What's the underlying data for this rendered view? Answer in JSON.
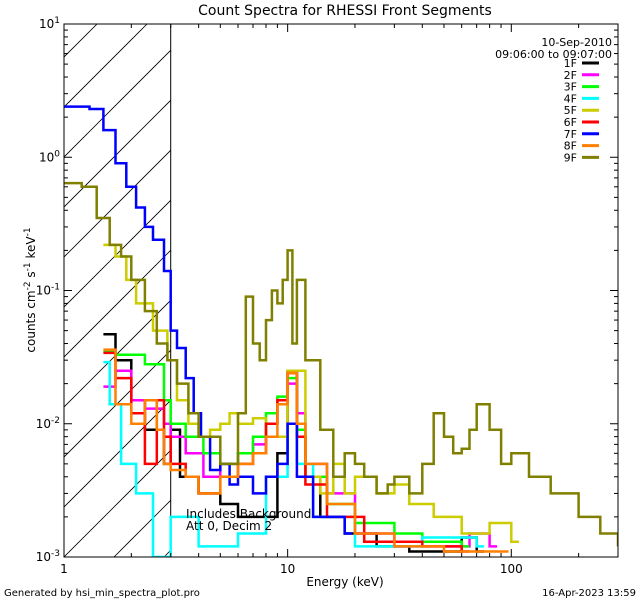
{
  "chart_data": {
    "type": "line",
    "step": true,
    "title": "Count Spectra for RHESSI Front Segments",
    "xlabel": "Energy (keV)",
    "ylabel_main": "counts cm",
    "ylabel_exp1": "-2",
    "ylabel_mid": " s",
    "ylabel_exp2": "-1",
    "ylabel_end": " keV",
    "ylabel_exp3": "-1",
    "xscale": "log",
    "yscale": "log",
    "xlim": [
      1,
      300
    ],
    "ylim": [
      0.001,
      10
    ],
    "xticks": [
      {
        "value": 1,
        "label": "1"
      },
      {
        "value": 10,
        "label": "10"
      },
      {
        "value": 100,
        "label": "100"
      }
    ],
    "yticks": [
      {
        "value": 0.001,
        "base": "10",
        "exp": "-3"
      },
      {
        "value": 0.01,
        "base": "10",
        "exp": "-2"
      },
      {
        "value": 0.1,
        "base": "10",
        "exp": "-1"
      },
      {
        "value": 1,
        "base": "10",
        "exp": "0"
      },
      {
        "value": 10,
        "base": "10",
        "exp": "1"
      }
    ],
    "attenuator_region_max_keV": 3,
    "legend_date": "10-Sep-2010",
    "legend_time": "09:06:00 to 09:07:00",
    "annotation_1": "Includes Background",
    "annotation_2": "Att 0, Decim 2",
    "series": [
      {
        "name": "1F",
        "color": "#000000",
        "points": [
          [
            1.5,
            0.047
          ],
          [
            1.7,
            0.03
          ],
          [
            2.0,
            0.015
          ],
          [
            2.3,
            0.009
          ],
          [
            2.8,
            0.005
          ],
          [
            3.0,
            0.009
          ],
          [
            3.3,
            0.004
          ],
          [
            4.0,
            0.003
          ],
          [
            5.0,
            0.0025
          ],
          [
            6.0,
            0.002
          ],
          [
            7.0,
            0.002
          ],
          [
            9.0,
            0.006
          ],
          [
            10.0,
            0.025
          ],
          [
            11.0,
            0.008
          ],
          [
            12.0,
            0.004
          ],
          [
            14.0,
            0.002
          ],
          [
            18.0,
            0.0015
          ],
          [
            25.0,
            0.0012
          ],
          [
            35.0,
            0.0011
          ],
          [
            60.0,
            0.0014
          ],
          [
            70.0,
            0.0011
          ]
        ]
      },
      {
        "name": "2F",
        "color": "#ff00ff",
        "points": [
          [
            1.5,
            0.019
          ],
          [
            1.7,
            0.025
          ],
          [
            2.0,
            0.015
          ],
          [
            2.3,
            0.013
          ],
          [
            2.8,
            0.01
          ],
          [
            3.0,
            0.008
          ],
          [
            3.5,
            0.006
          ],
          [
            4.2,
            0.004
          ],
          [
            5.0,
            0.005
          ],
          [
            6.0,
            0.006
          ],
          [
            7.0,
            0.007
          ],
          [
            8.0,
            0.01
          ],
          [
            9.0,
            0.015
          ],
          [
            10.0,
            0.02
          ],
          [
            11.0,
            0.012
          ],
          [
            12.0,
            0.005
          ],
          [
            15.0,
            0.003
          ],
          [
            20.0,
            0.0015
          ],
          [
            30.0,
            0.0012
          ],
          [
            65.0,
            0.0015
          ],
          [
            80.0,
            0.0012
          ]
        ]
      },
      {
        "name": "3F",
        "color": "#00ff00",
        "points": [
          [
            1.5,
            0.035
          ],
          [
            1.7,
            0.033
          ],
          [
            2.0,
            0.033
          ],
          [
            2.3,
            0.028
          ],
          [
            2.8,
            0.015
          ],
          [
            3.0,
            0.01
          ],
          [
            3.5,
            0.008
          ],
          [
            4.2,
            0.006
          ],
          [
            5.0,
            0.005
          ],
          [
            6.0,
            0.006
          ],
          [
            7.0,
            0.008
          ],
          [
            8.0,
            0.012
          ],
          [
            9.0,
            0.016
          ],
          [
            10.0,
            0.022
          ],
          [
            11.0,
            0.009
          ],
          [
            12.0,
            0.004
          ],
          [
            15.0,
            0.0025
          ],
          [
            20.0,
            0.0018
          ],
          [
            30.0,
            0.0015
          ],
          [
            40.0,
            0.0013
          ],
          [
            60.0,
            0.0012
          ]
        ]
      },
      {
        "name": "4F",
        "color": "#00ffff",
        "points": [
          [
            1.5,
            0.029
          ],
          [
            1.6,
            0.014
          ],
          [
            1.8,
            0.005
          ],
          [
            2.1,
            0.003
          ],
          [
            2.5,
            0.001
          ],
          [
            3.0,
            0.002
          ],
          [
            4.0,
            0.0012
          ],
          [
            6.0,
            0.0015
          ],
          [
            8.0,
            0.004
          ],
          [
            10.0,
            0.01
          ],
          [
            11.0,
            0.005
          ],
          [
            13.0,
            0.002
          ],
          [
            20.0,
            0.0012
          ],
          [
            40.0,
            0.0014
          ],
          [
            70.0,
            0.0012
          ]
        ]
      },
      {
        "name": "5F",
        "color": "#cccc00",
        "points": [
          [
            1.5,
            0.22
          ],
          [
            1.7,
            0.18
          ],
          [
            1.9,
            0.12
          ],
          [
            2.1,
            0.08
          ],
          [
            2.5,
            0.05
          ],
          [
            2.9,
            0.03
          ],
          [
            3.2,
            0.015
          ],
          [
            3.6,
            0.01
          ],
          [
            4.0,
            0.008
          ],
          [
            4.5,
            0.009
          ],
          [
            5.0,
            0.01
          ],
          [
            5.5,
            0.012
          ],
          [
            6.0,
            0.01
          ],
          [
            7.0,
            0.011
          ],
          [
            8.0,
            0.008
          ],
          [
            10.0,
            0.025
          ],
          [
            12.0,
            0.004
          ],
          [
            14.0,
            0.003
          ],
          [
            16.0,
            0.005
          ],
          [
            18.0,
            0.003
          ],
          [
            20.0,
            0.004
          ],
          [
            25.0,
            0.003
          ],
          [
            30.0,
            0.0035
          ],
          [
            35.0,
            0.0025
          ],
          [
            45.0,
            0.002
          ],
          [
            60.0,
            0.0015
          ],
          [
            80.0,
            0.0018
          ],
          [
            100.0,
            0.0013
          ]
        ]
      },
      {
        "name": "6F",
        "color": "#ff0000",
        "points": [
          [
            1.5,
            0.034
          ],
          [
            1.7,
            0.022
          ],
          [
            2.0,
            0.012
          ],
          [
            2.3,
            0.005
          ],
          [
            2.6,
            0.015
          ],
          [
            2.8,
            0.008
          ],
          [
            3.0,
            0.005
          ],
          [
            3.5,
            0.004
          ],
          [
            4.0,
            0.003
          ],
          [
            5.0,
            0.004
          ],
          [
            6.0,
            0.005
          ],
          [
            7.0,
            0.006
          ],
          [
            8.0,
            0.01
          ],
          [
            9.0,
            0.015
          ],
          [
            10.0,
            0.024
          ],
          [
            11.0,
            0.008
          ],
          [
            12.0,
            0.0035
          ],
          [
            15.0,
            0.002
          ],
          [
            22.0,
            0.0013
          ],
          [
            40.0,
            0.0012
          ],
          [
            60.0,
            0.0011
          ]
        ]
      },
      {
        "name": "7F",
        "color": "#0000ff",
        "points": [
          [
            1.0,
            2.4
          ],
          [
            1.3,
            2.3
          ],
          [
            1.5,
            1.6
          ],
          [
            1.7,
            0.9
          ],
          [
            1.9,
            0.6
          ],
          [
            2.1,
            0.42
          ],
          [
            2.3,
            0.3
          ],
          [
            2.5,
            0.24
          ],
          [
            2.8,
            0.14
          ],
          [
            3.0,
            0.05
          ],
          [
            3.2,
            0.037
          ],
          [
            3.5,
            0.022
          ],
          [
            3.8,
            0.012
          ],
          [
            4.1,
            0.008
          ],
          [
            4.5,
            0.0045
          ],
          [
            5.0,
            0.005
          ],
          [
            5.5,
            0.0035
          ],
          [
            6.0,
            0.004
          ],
          [
            7.0,
            0.003
          ],
          [
            8.0,
            0.004
          ],
          [
            9.0,
            0.005
          ],
          [
            10.0,
            0.01
          ],
          [
            11.0,
            0.004
          ],
          [
            13.0,
            0.002
          ],
          [
            18.0,
            0.0015
          ]
        ]
      },
      {
        "name": "8F",
        "color": "#ff8000",
        "points": [
          [
            1.5,
            0.036
          ],
          [
            1.7,
            0.014
          ],
          [
            2.0,
            0.01
          ],
          [
            2.3,
            0.015
          ],
          [
            2.6,
            0.009
          ],
          [
            2.8,
            0.005
          ],
          [
            3.0,
            0.0045
          ],
          [
            3.5,
            0.004
          ],
          [
            4.0,
            0.003
          ],
          [
            5.0,
            0.004
          ],
          [
            6.0,
            0.005
          ],
          [
            7.0,
            0.006
          ],
          [
            8.0,
            0.008
          ],
          [
            9.0,
            0.014
          ],
          [
            10.0,
            0.024
          ],
          [
            11.0,
            0.01
          ],
          [
            12.0,
            0.005
          ],
          [
            15.0,
            0.0025
          ],
          [
            20.0,
            0.0015
          ],
          [
            30.0,
            0.0012
          ],
          [
            50.0,
            0.0011
          ],
          [
            90.0,
            0.0011
          ]
        ]
      },
      {
        "name": "9F",
        "color": "#808000",
        "points": [
          [
            1.0,
            0.64
          ],
          [
            1.2,
            0.6
          ],
          [
            1.4,
            0.35
          ],
          [
            1.6,
            0.22
          ],
          [
            1.8,
            0.18
          ],
          [
            2.0,
            0.12
          ],
          [
            2.3,
            0.07
          ],
          [
            2.6,
            0.04
          ],
          [
            2.9,
            0.03
          ],
          [
            3.2,
            0.02
          ],
          [
            3.6,
            0.012
          ],
          [
            4.0,
            0.008
          ],
          [
            5.0,
            0.005
          ],
          [
            6.0,
            0.012
          ],
          [
            6.5,
            0.09
          ],
          [
            7.0,
            0.04
          ],
          [
            7.5,
            0.03
          ],
          [
            8.0,
            0.06
          ],
          [
            8.5,
            0.1
          ],
          [
            9.0,
            0.08
          ],
          [
            9.5,
            0.12
          ],
          [
            10.0,
            0.2
          ],
          [
            10.5,
            0.04
          ],
          [
            11.0,
            0.12
          ],
          [
            12.0,
            0.03
          ],
          [
            14.0,
            0.009
          ],
          [
            16.0,
            0.004
          ],
          [
            18.0,
            0.006
          ],
          [
            20.0,
            0.005
          ],
          [
            22.0,
            0.004
          ],
          [
            25.0,
            0.003
          ],
          [
            28.0,
            0.0035
          ],
          [
            30.0,
            0.004
          ],
          [
            35.0,
            0.003
          ],
          [
            40.0,
            0.005
          ],
          [
            45.0,
            0.012
          ],
          [
            50.0,
            0.008
          ],
          [
            55.0,
            0.006
          ],
          [
            60.0,
            0.0065
          ],
          [
            65.0,
            0.009
          ],
          [
            70.0,
            0.014
          ],
          [
            80.0,
            0.009
          ],
          [
            90.0,
            0.005
          ],
          [
            100.0,
            0.006
          ],
          [
            120.0,
            0.004
          ],
          [
            150.0,
            0.003
          ],
          [
            200.0,
            0.002
          ],
          [
            250.0,
            0.0015
          ],
          [
            300.0,
            0.0012
          ]
        ]
      }
    ]
  },
  "footer": {
    "generated_by": "Generated by hsi_min_spectra_plot.pro",
    "timestamp": "16-Apr-2023 13:59"
  }
}
